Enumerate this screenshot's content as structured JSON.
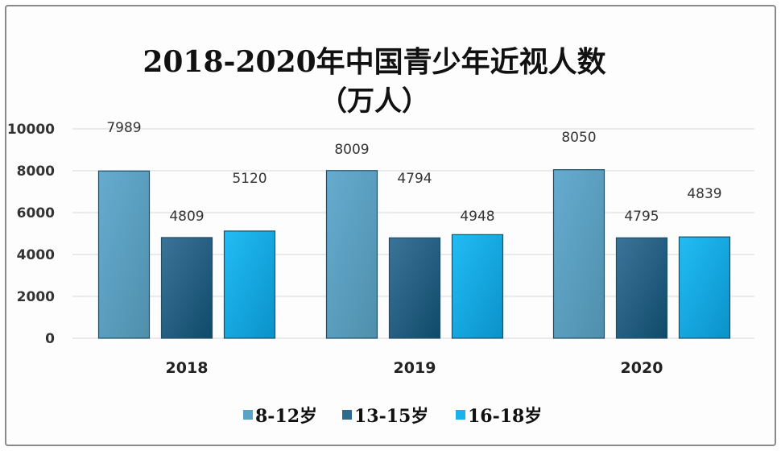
{
  "chart_data": {
    "type": "bar",
    "title": "2018-2020年中国青少年近视人数",
    "subtitle": "（万人）",
    "categories": [
      "2018",
      "2019",
      "2020"
    ],
    "series": [
      {
        "name": "8-12岁",
        "values": [
          7989,
          8009,
          8050
        ],
        "color": "#5aa3c8"
      },
      {
        "name": "13-15岁",
        "values": [
          4809,
          4794,
          4795
        ],
        "color": "#2e6a8f"
      },
      {
        "name": "16-18岁",
        "values": [
          5120,
          4948,
          4839
        ],
        "color": "#1ab2ec"
      }
    ],
    "ylim": [
      0,
      10000
    ],
    "yticks": [
      "0",
      "2000",
      "4000",
      "6000",
      "8000",
      "10000"
    ],
    "grid": true,
    "legend": "bottom",
    "xlabel": "",
    "ylabel": ""
  }
}
